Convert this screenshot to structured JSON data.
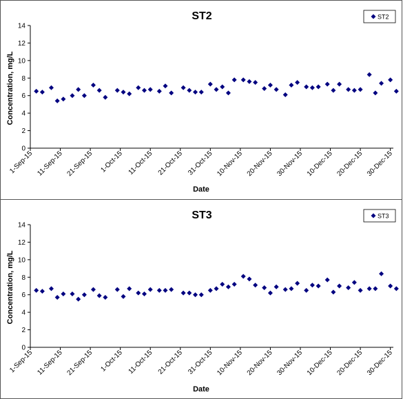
{
  "chart_data": [
    {
      "type": "scatter",
      "title": "ST2",
      "xlabel": "Date",
      "ylabel": "Concentration, mg/L",
      "ylim": [
        0,
        14
      ],
      "yticks": [
        0,
        2,
        4,
        6,
        8,
        10,
        12,
        14
      ],
      "xlim": [
        "2015-09-01",
        "2015-12-31"
      ],
      "xtick_labels": [
        "1-Sep-15",
        "11-Sep-15",
        "21-Sep-15",
        "1-Oct-15",
        "11-Oct-15",
        "21-Oct-15",
        "31-Oct-15",
        "10-Nov-15",
        "20-Nov-15",
        "30-Nov-15",
        "10-Dec-15",
        "20-Dec-15",
        "30-Dec-15"
      ],
      "xtick_dates": [
        "2015-09-01",
        "2015-09-11",
        "2015-09-21",
        "2015-10-01",
        "2015-10-11",
        "2015-10-21",
        "2015-10-31",
        "2015-11-10",
        "2015-11-20",
        "2015-11-30",
        "2015-12-10",
        "2015-12-20",
        "2015-12-30"
      ],
      "grid": false,
      "legend": "top-right",
      "marker_color": "#000080",
      "series": [
        {
          "name": "ST2",
          "x": [
            "2015-09-03",
            "2015-09-05",
            "2015-09-08",
            "2015-09-10",
            "2015-09-12",
            "2015-09-15",
            "2015-09-17",
            "2015-09-19",
            "2015-09-22",
            "2015-09-24",
            "2015-09-26",
            "2015-09-30",
            "2015-10-02",
            "2015-10-04",
            "2015-10-07",
            "2015-10-09",
            "2015-10-11",
            "2015-10-14",
            "2015-10-16",
            "2015-10-18",
            "2015-10-22",
            "2015-10-24",
            "2015-10-26",
            "2015-10-28",
            "2015-10-31",
            "2015-11-02",
            "2015-11-04",
            "2015-11-06",
            "2015-11-08",
            "2015-11-11",
            "2015-11-13",
            "2015-11-15",
            "2015-11-18",
            "2015-11-20",
            "2015-11-22",
            "2015-11-25",
            "2015-11-27",
            "2015-11-29",
            "2015-12-02",
            "2015-12-04",
            "2015-12-06",
            "2015-12-09",
            "2015-12-11",
            "2015-12-13",
            "2015-12-16",
            "2015-12-18",
            "2015-12-20",
            "2015-12-23",
            "2015-12-25",
            "2015-12-27",
            "2015-12-30",
            "2016-01-01"
          ],
          "y": [
            6.5,
            6.4,
            6.9,
            5.4,
            5.6,
            6.0,
            6.7,
            6.0,
            7.2,
            6.6,
            5.8,
            6.6,
            6.4,
            6.2,
            6.9,
            6.6,
            6.7,
            6.5,
            7.1,
            6.3,
            6.9,
            6.6,
            6.4,
            6.4,
            7.3,
            6.7,
            7.0,
            6.3,
            7.8,
            7.8,
            7.6,
            7.5,
            6.8,
            7.2,
            6.7,
            6.1,
            7.2,
            7.5,
            7.0,
            6.9,
            7.0,
            7.3,
            6.6,
            7.3,
            6.7,
            6.6,
            6.7,
            8.4,
            6.3,
            7.4,
            7.8,
            6.5
          ]
        }
      ]
    },
    {
      "type": "scatter",
      "title": "ST3",
      "xlabel": "Date",
      "ylabel": "Concentration, mg/L",
      "ylim": [
        0,
        14
      ],
      "yticks": [
        0,
        2,
        4,
        6,
        8,
        10,
        12,
        14
      ],
      "xlim": [
        "2015-09-01",
        "2015-12-31"
      ],
      "xtick_labels": [
        "1-Sep-15",
        "11-Sep-15",
        "21-Sep-15",
        "1-Oct-15",
        "11-Oct-15",
        "21-Oct-15",
        "31-Oct-15",
        "10-Nov-15",
        "20-Nov-15",
        "30-Nov-15",
        "10-Dec-15",
        "20-Dec-15",
        "30-Dec-15"
      ],
      "xtick_dates": [
        "2015-09-01",
        "2015-09-11",
        "2015-09-21",
        "2015-10-01",
        "2015-10-11",
        "2015-10-21",
        "2015-10-31",
        "2015-11-10",
        "2015-11-20",
        "2015-11-30",
        "2015-12-10",
        "2015-12-20",
        "2015-12-30"
      ],
      "grid": false,
      "legend": "top-right",
      "marker_color": "#000080",
      "series": [
        {
          "name": "ST3",
          "x": [
            "2015-09-03",
            "2015-09-05",
            "2015-09-08",
            "2015-09-10",
            "2015-09-12",
            "2015-09-15",
            "2015-09-17",
            "2015-09-19",
            "2015-09-22",
            "2015-09-24",
            "2015-09-26",
            "2015-09-30",
            "2015-10-02",
            "2015-10-04",
            "2015-10-07",
            "2015-10-09",
            "2015-10-11",
            "2015-10-14",
            "2015-10-16",
            "2015-10-18",
            "2015-10-22",
            "2015-10-24",
            "2015-10-26",
            "2015-10-28",
            "2015-10-31",
            "2015-11-02",
            "2015-11-04",
            "2015-11-06",
            "2015-11-08",
            "2015-11-11",
            "2015-11-13",
            "2015-11-15",
            "2015-11-18",
            "2015-11-20",
            "2015-11-22",
            "2015-11-25",
            "2015-11-27",
            "2015-11-29",
            "2015-12-02",
            "2015-12-04",
            "2015-12-06",
            "2015-12-09",
            "2015-12-11",
            "2015-12-13",
            "2015-12-16",
            "2015-12-18",
            "2015-12-20",
            "2015-12-23",
            "2015-12-25",
            "2015-12-27",
            "2015-12-30",
            "2016-01-01"
          ],
          "y": [
            6.5,
            6.4,
            6.7,
            5.7,
            6.1,
            6.1,
            5.5,
            6.0,
            6.6,
            5.9,
            5.7,
            6.6,
            5.8,
            6.7,
            6.2,
            6.1,
            6.6,
            6.5,
            6.5,
            6.6,
            6.2,
            6.2,
            6.0,
            6.0,
            6.5,
            6.7,
            7.2,
            6.9,
            7.2,
            8.1,
            7.8,
            7.1,
            6.8,
            6.2,
            6.9,
            6.6,
            6.7,
            7.3,
            6.5,
            7.1,
            7.0,
            7.7,
            6.3,
            7.0,
            6.8,
            7.4,
            6.5,
            6.7,
            6.7,
            8.4,
            7.0,
            6.7
          ]
        }
      ]
    }
  ]
}
